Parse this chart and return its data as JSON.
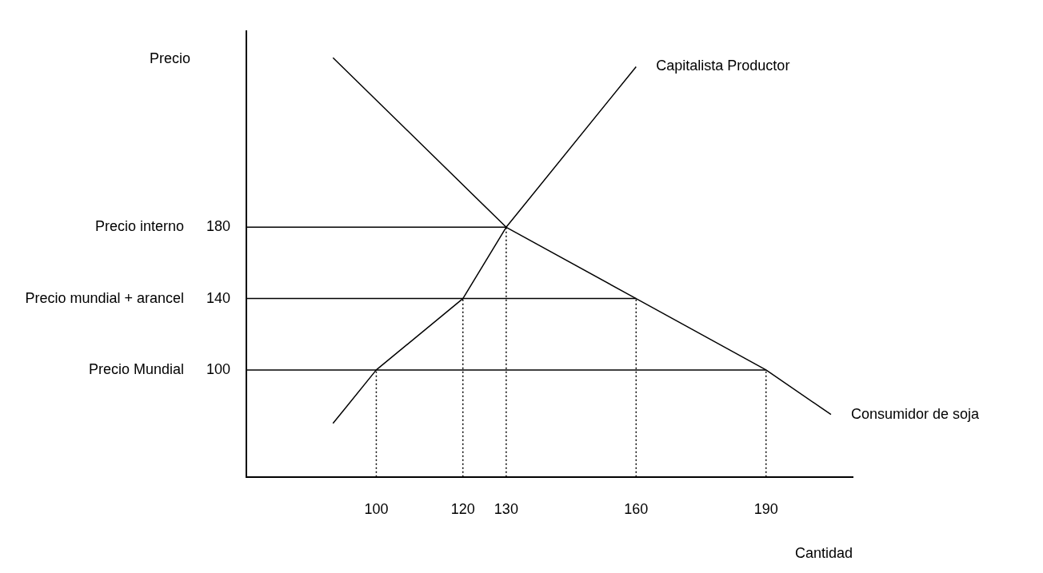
{
  "chart_data": {
    "type": "line",
    "xlabel": "Cantidad",
    "ylabel": "Precio",
    "xlim": [
      70,
      210
    ],
    "ylim": [
      40,
      290
    ],
    "xticks": [
      100,
      120,
      130,
      160,
      190
    ],
    "yticks": [
      100,
      140,
      180
    ],
    "annotations": [
      "Precio Mundial",
      "Precio mundial + arancel",
      "Precio interno"
    ],
    "grid": false,
    "legend": false,
    "marker": "none",
    "series": [
      {
        "name": "Capitalista Productor",
        "color": "#000000",
        "x": [
          90,
          100,
          120,
          130,
          160
        ],
        "values": [
          70,
          100,
          140,
          180,
          270
        ]
      },
      {
        "name": "Consumidor de soja",
        "color": "#000000",
        "x": [
          90,
          130,
          160,
          190,
          205
        ],
        "values": [
          275,
          180,
          140,
          100,
          75
        ]
      },
      {
        "color": "#000000",
        "x": [
          70,
          130
        ],
        "values": [
          180,
          180
        ]
      },
      {
        "color": "#000000",
        "x": [
          70,
          160
        ],
        "values": [
          140,
          140
        ]
      },
      {
        "color": "#000000",
        "x": [
          70,
          190
        ],
        "values": [
          100,
          100
        ]
      },
      {
        "color": "#000000",
        "line_style": "dotted",
        "x": [
          100,
          100
        ],
        "values": [
          40,
          100
        ]
      },
      {
        "color": "#000000",
        "line_style": "dotted",
        "x": [
          120,
          120
        ],
        "values": [
          40,
          140
        ]
      },
      {
        "color": "#000000",
        "line_style": "dotted",
        "x": [
          130,
          130
        ],
        "values": [
          40,
          180
        ]
      },
      {
        "color": "#000000",
        "line_style": "dotted",
        "x": [
          160,
          160
        ],
        "values": [
          40,
          140
        ]
      },
      {
        "color": "#000000",
        "line_style": "dotted",
        "x": [
          190,
          190
        ],
        "values": [
          40,
          100
        ]
      }
    ]
  }
}
